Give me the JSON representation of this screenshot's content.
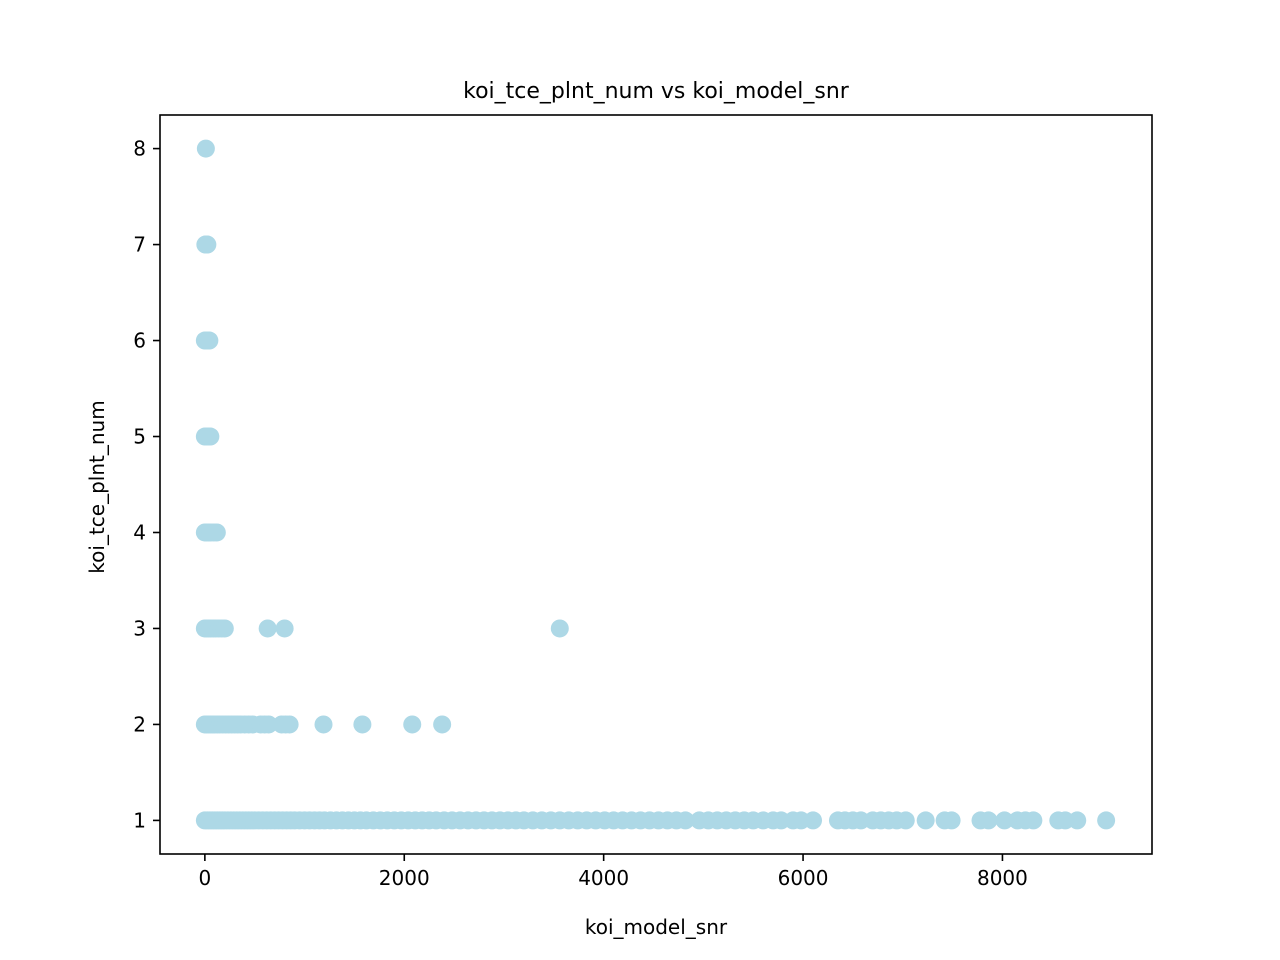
{
  "chart_data": {
    "type": "scatter",
    "title": "koi_tce_plnt_num vs koi_model_snr",
    "xlabel": "koi_model_snr",
    "ylabel": "koi_tce_plnt_num",
    "xlim": [
      -450,
      9500
    ],
    "ylim": [
      0.65,
      8.35
    ],
    "x_ticks": [
      0,
      2000,
      4000,
      6000,
      8000
    ],
    "y_ticks": [
      1,
      2,
      3,
      4,
      5,
      6,
      7,
      8
    ],
    "marker_color": "#add8e6",
    "grid": false,
    "legend": "none",
    "series": [
      {
        "points": [
          {
            "x": 10,
            "y": 8
          },
          {
            "x": 5,
            "y": 7
          },
          {
            "x": 15,
            "y": 7
          },
          {
            "x": 25,
            "y": 7
          },
          {
            "x": 0,
            "y": 6
          },
          {
            "x": 15,
            "y": 6
          },
          {
            "x": 30,
            "y": 6
          },
          {
            "x": 45,
            "y": 6
          },
          {
            "x": 0,
            "y": 5
          },
          {
            "x": 20,
            "y": 5
          },
          {
            "x": 35,
            "y": 5
          },
          {
            "x": 55,
            "y": 5
          },
          {
            "x": 0,
            "y": 4
          },
          {
            "x": 20,
            "y": 4
          },
          {
            "x": 40,
            "y": 4
          },
          {
            "x": 60,
            "y": 4
          },
          {
            "x": 90,
            "y": 4
          },
          {
            "x": 120,
            "y": 4
          },
          {
            "x": 0,
            "y": 3
          },
          {
            "x": 20,
            "y": 3
          },
          {
            "x": 40,
            "y": 3
          },
          {
            "x": 60,
            "y": 3
          },
          {
            "x": 85,
            "y": 3
          },
          {
            "x": 110,
            "y": 3
          },
          {
            "x": 140,
            "y": 3
          },
          {
            "x": 170,
            "y": 3
          },
          {
            "x": 200,
            "y": 3
          },
          {
            "x": 630,
            "y": 3
          },
          {
            "x": 800,
            "y": 3
          },
          {
            "x": 3560,
            "y": 3
          },
          {
            "x": 0,
            "y": 2
          },
          {
            "x": 20,
            "y": 2
          },
          {
            "x": 40,
            "y": 2
          },
          {
            "x": 60,
            "y": 2
          },
          {
            "x": 80,
            "y": 2
          },
          {
            "x": 100,
            "y": 2
          },
          {
            "x": 125,
            "y": 2
          },
          {
            "x": 150,
            "y": 2
          },
          {
            "x": 180,
            "y": 2
          },
          {
            "x": 210,
            "y": 2
          },
          {
            "x": 240,
            "y": 2
          },
          {
            "x": 270,
            "y": 2
          },
          {
            "x": 300,
            "y": 2
          },
          {
            "x": 330,
            "y": 2
          },
          {
            "x": 360,
            "y": 2
          },
          {
            "x": 400,
            "y": 2
          },
          {
            "x": 440,
            "y": 2
          },
          {
            "x": 480,
            "y": 2
          },
          {
            "x": 560,
            "y": 2
          },
          {
            "x": 600,
            "y": 2
          },
          {
            "x": 640,
            "y": 2
          },
          {
            "x": 770,
            "y": 2
          },
          {
            "x": 810,
            "y": 2
          },
          {
            "x": 850,
            "y": 2
          },
          {
            "x": 1190,
            "y": 2
          },
          {
            "x": 1580,
            "y": 2
          },
          {
            "x": 2080,
            "y": 2
          },
          {
            "x": 2380,
            "y": 2
          },
          {
            "x": 0,
            "y": 1
          },
          {
            "x": 25,
            "y": 1
          },
          {
            "x": 50,
            "y": 1
          },
          {
            "x": 75,
            "y": 1
          },
          {
            "x": 100,
            "y": 1
          },
          {
            "x": 125,
            "y": 1
          },
          {
            "x": 150,
            "y": 1
          },
          {
            "x": 175,
            "y": 1
          },
          {
            "x": 200,
            "y": 1
          },
          {
            "x": 230,
            "y": 1
          },
          {
            "x": 260,
            "y": 1
          },
          {
            "x": 290,
            "y": 1
          },
          {
            "x": 320,
            "y": 1
          },
          {
            "x": 350,
            "y": 1
          },
          {
            "x": 380,
            "y": 1
          },
          {
            "x": 410,
            "y": 1
          },
          {
            "x": 440,
            "y": 1
          },
          {
            "x": 470,
            "y": 1
          },
          {
            "x": 500,
            "y": 1
          },
          {
            "x": 540,
            "y": 1
          },
          {
            "x": 580,
            "y": 1
          },
          {
            "x": 620,
            "y": 1
          },
          {
            "x": 660,
            "y": 1
          },
          {
            "x": 700,
            "y": 1
          },
          {
            "x": 740,
            "y": 1
          },
          {
            "x": 780,
            "y": 1
          },
          {
            "x": 820,
            "y": 1
          },
          {
            "x": 860,
            "y": 1
          },
          {
            "x": 900,
            "y": 1
          },
          {
            "x": 950,
            "y": 1
          },
          {
            "x": 1000,
            "y": 1
          },
          {
            "x": 1050,
            "y": 1
          },
          {
            "x": 1100,
            "y": 1
          },
          {
            "x": 1150,
            "y": 1
          },
          {
            "x": 1200,
            "y": 1
          },
          {
            "x": 1260,
            "y": 1
          },
          {
            "x": 1320,
            "y": 1
          },
          {
            "x": 1380,
            "y": 1
          },
          {
            "x": 1440,
            "y": 1
          },
          {
            "x": 1500,
            "y": 1
          },
          {
            "x": 1560,
            "y": 1
          },
          {
            "x": 1620,
            "y": 1
          },
          {
            "x": 1690,
            "y": 1
          },
          {
            "x": 1760,
            "y": 1
          },
          {
            "x": 1830,
            "y": 1
          },
          {
            "x": 1900,
            "y": 1
          },
          {
            "x": 1970,
            "y": 1
          },
          {
            "x": 2040,
            "y": 1
          },
          {
            "x": 2110,
            "y": 1
          },
          {
            "x": 2180,
            "y": 1
          },
          {
            "x": 2250,
            "y": 1
          },
          {
            "x": 2320,
            "y": 1
          },
          {
            "x": 2400,
            "y": 1
          },
          {
            "x": 2480,
            "y": 1
          },
          {
            "x": 2560,
            "y": 1
          },
          {
            "x": 2640,
            "y": 1
          },
          {
            "x": 2720,
            "y": 1
          },
          {
            "x": 2800,
            "y": 1
          },
          {
            "x": 2880,
            "y": 1
          },
          {
            "x": 2960,
            "y": 1
          },
          {
            "x": 3040,
            "y": 1
          },
          {
            "x": 3120,
            "y": 1
          },
          {
            "x": 3200,
            "y": 1
          },
          {
            "x": 3290,
            "y": 1
          },
          {
            "x": 3380,
            "y": 1
          },
          {
            "x": 3470,
            "y": 1
          },
          {
            "x": 3560,
            "y": 1
          },
          {
            "x": 3650,
            "y": 1
          },
          {
            "x": 3740,
            "y": 1
          },
          {
            "x": 3830,
            "y": 1
          },
          {
            "x": 3920,
            "y": 1
          },
          {
            "x": 4010,
            "y": 1
          },
          {
            "x": 4100,
            "y": 1
          },
          {
            "x": 4190,
            "y": 1
          },
          {
            "x": 4280,
            "y": 1
          },
          {
            "x": 4370,
            "y": 1
          },
          {
            "x": 4460,
            "y": 1
          },
          {
            "x": 4550,
            "y": 1
          },
          {
            "x": 4640,
            "y": 1
          },
          {
            "x": 4730,
            "y": 1
          },
          {
            "x": 4820,
            "y": 1
          },
          {
            "x": 4960,
            "y": 1
          },
          {
            "x": 5050,
            "y": 1
          },
          {
            "x": 5140,
            "y": 1
          },
          {
            "x": 5230,
            "y": 1
          },
          {
            "x": 5320,
            "y": 1
          },
          {
            "x": 5410,
            "y": 1
          },
          {
            "x": 5500,
            "y": 1
          },
          {
            "x": 5600,
            "y": 1
          },
          {
            "x": 5700,
            "y": 1
          },
          {
            "x": 5780,
            "y": 1
          },
          {
            "x": 5900,
            "y": 1
          },
          {
            "x": 5980,
            "y": 1
          },
          {
            "x": 6100,
            "y": 1
          },
          {
            "x": 6350,
            "y": 1
          },
          {
            "x": 6420,
            "y": 1
          },
          {
            "x": 6500,
            "y": 1
          },
          {
            "x": 6580,
            "y": 1
          },
          {
            "x": 6700,
            "y": 1
          },
          {
            "x": 6780,
            "y": 1
          },
          {
            "x": 6860,
            "y": 1
          },
          {
            "x": 6940,
            "y": 1
          },
          {
            "x": 7030,
            "y": 1
          },
          {
            "x": 7230,
            "y": 1
          },
          {
            "x": 7420,
            "y": 1
          },
          {
            "x": 7490,
            "y": 1
          },
          {
            "x": 7780,
            "y": 1
          },
          {
            "x": 7860,
            "y": 1
          },
          {
            "x": 8020,
            "y": 1
          },
          {
            "x": 8150,
            "y": 1
          },
          {
            "x": 8230,
            "y": 1
          },
          {
            "x": 8310,
            "y": 1
          },
          {
            "x": 8560,
            "y": 1
          },
          {
            "x": 8630,
            "y": 1
          },
          {
            "x": 8750,
            "y": 1
          },
          {
            "x": 9040,
            "y": 1
          }
        ]
      }
    ]
  }
}
